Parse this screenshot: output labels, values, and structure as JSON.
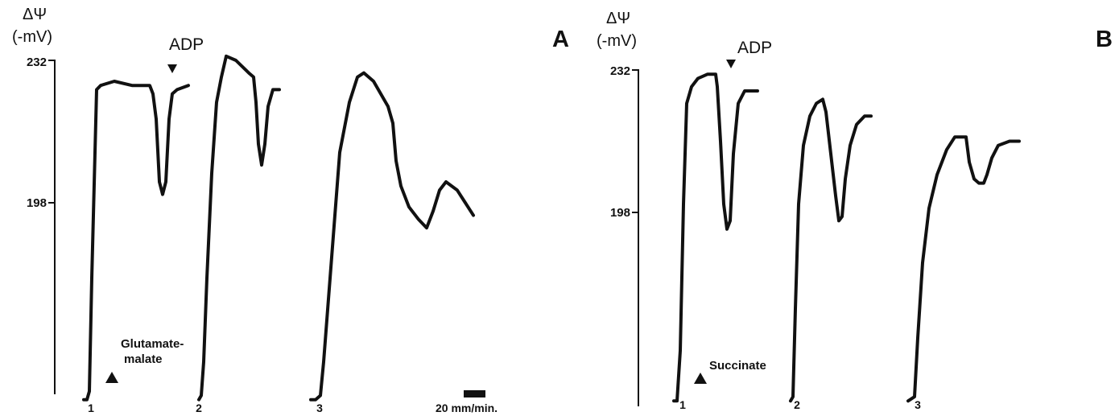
{
  "figure": {
    "scale_label": "20 mm/min."
  },
  "chart_data": [
    {
      "type": "line",
      "panel_label": "A",
      "ylabel": [
        "ΔΨ",
        "(-mV)"
      ],
      "yticks": [
        232,
        198
      ],
      "ylim": [
        150,
        232
      ],
      "marker_label": "ADP",
      "substrate_label": [
        "Glutamate-",
        "malate"
      ],
      "series": [
        {
          "name": "1",
          "points": [
            [
              0,
              151
            ],
            [
              0.04,
              151
            ],
            [
              0.07,
              153
            ],
            [
              0.1,
              180
            ],
            [
              0.16,
              225
            ],
            [
              0.21,
              226
            ],
            [
              0.38,
              227
            ],
            [
              0.6,
              226
            ],
            [
              0.82,
              226
            ],
            [
              0.86,
              224
            ],
            [
              0.9,
              218
            ],
            [
              0.94,
              203
            ],
            [
              0.98,
              200
            ],
            [
              1.02,
              203
            ],
            [
              1.06,
              218
            ],
            [
              1.1,
              224
            ],
            [
              1.16,
              225
            ],
            [
              1.3,
              226
            ]
          ]
        },
        {
          "name": "2",
          "points": [
            [
              0,
              151
            ],
            [
              0.03,
              152
            ],
            [
              0.06,
              160
            ],
            [
              0.1,
              180
            ],
            [
              0.16,
              205
            ],
            [
              0.22,
              222
            ],
            [
              0.28,
              228
            ],
            [
              0.34,
              233
            ],
            [
              0.46,
              232
            ],
            [
              0.62,
              229
            ],
            [
              0.68,
              228
            ],
            [
              0.71,
              222
            ],
            [
              0.74,
              212
            ],
            [
              0.78,
              207
            ],
            [
              0.82,
              212
            ],
            [
              0.86,
              221
            ],
            [
              0.92,
              225
            ],
            [
              1.0,
              225
            ]
          ]
        },
        {
          "name": "3",
          "points": [
            [
              0,
              151
            ],
            [
              0.06,
              151
            ],
            [
              0.12,
              152
            ],
            [
              0.16,
              160
            ],
            [
              0.26,
              185
            ],
            [
              0.36,
              210
            ],
            [
              0.48,
              222
            ],
            [
              0.58,
              228
            ],
            [
              0.66,
              229
            ],
            [
              0.78,
              227
            ],
            [
              0.96,
              221
            ],
            [
              1.02,
              217
            ],
            [
              1.06,
              208
            ],
            [
              1.12,
              202
            ],
            [
              1.22,
              197
            ],
            [
              1.34,
              194
            ],
            [
              1.44,
              192
            ],
            [
              1.52,
              196
            ],
            [
              1.6,
              201
            ],
            [
              1.68,
              203
            ],
            [
              1.82,
              201
            ],
            [
              1.92,
              198
            ],
            [
              2.02,
              195
            ]
          ]
        }
      ]
    },
    {
      "type": "line",
      "panel_label": "B",
      "ylabel": [
        "ΔΨ",
        "(-mV)"
      ],
      "yticks": [
        232,
        198
      ],
      "ylim": [
        150,
        232
      ],
      "marker_label": "ADP",
      "substrate_label": [
        "Succinate"
      ],
      "series": [
        {
          "name": "1",
          "points": [
            [
              0,
              153
            ],
            [
              0.04,
              153
            ],
            [
              0.08,
              165
            ],
            [
              0.12,
              200
            ],
            [
              0.16,
              224
            ],
            [
              0.22,
              228
            ],
            [
              0.3,
              230
            ],
            [
              0.42,
              231
            ],
            [
              0.52,
              231
            ],
            [
              0.54,
              228
            ],
            [
              0.58,
              215
            ],
            [
              0.62,
              200
            ],
            [
              0.66,
              194
            ],
            [
              0.7,
              196
            ],
            [
              0.74,
              212
            ],
            [
              0.8,
              224
            ],
            [
              0.88,
              227
            ],
            [
              1.04,
              227
            ]
          ]
        },
        {
          "name": "2",
          "points": [
            [
              0,
              153
            ],
            [
              0.03,
              154
            ],
            [
              0.06,
              175
            ],
            [
              0.1,
              200
            ],
            [
              0.16,
              214
            ],
            [
              0.24,
              221
            ],
            [
              0.32,
              224
            ],
            [
              0.4,
              225
            ],
            [
              0.44,
              222
            ],
            [
              0.5,
              212
            ],
            [
              0.56,
              202
            ],
            [
              0.6,
              196
            ],
            [
              0.64,
              197
            ],
            [
              0.68,
              206
            ],
            [
              0.74,
              214
            ],
            [
              0.82,
              219
            ],
            [
              0.92,
              221
            ],
            [
              1.0,
              221
            ]
          ]
        },
        {
          "name": "3",
          "points": [
            [
              0,
              153
            ],
            [
              0.08,
              154
            ],
            [
              0.12,
              168
            ],
            [
              0.18,
              186
            ],
            [
              0.26,
              199
            ],
            [
              0.36,
              207
            ],
            [
              0.48,
              213
            ],
            [
              0.58,
              216
            ],
            [
              0.64,
              216
            ],
            [
              0.72,
              216
            ],
            [
              0.76,
              210
            ],
            [
              0.82,
              206
            ],
            [
              0.88,
              205
            ],
            [
              0.94,
              205
            ],
            [
              0.98,
              207
            ],
            [
              1.04,
              211
            ],
            [
              1.12,
              214
            ],
            [
              1.26,
              215
            ],
            [
              1.38,
              215
            ]
          ]
        }
      ]
    }
  ]
}
